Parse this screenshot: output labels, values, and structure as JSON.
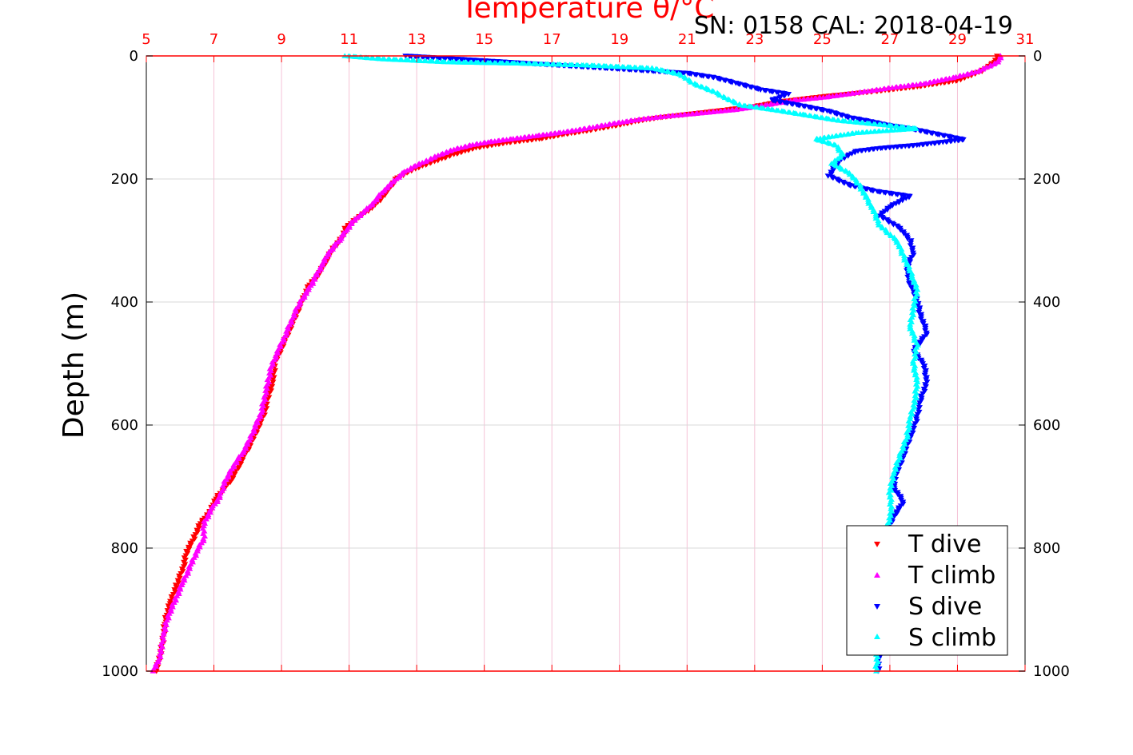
{
  "chart_data": {
    "type": "scatter",
    "title": "",
    "top_axis_label": "Temperature θ/°C",
    "annotation": "SN: 0158  CAL: 2018-04-19",
    "ylabel": "Depth (m)",
    "xlim": [
      5,
      31
    ],
    "ylim": [
      1000,
      0
    ],
    "y_reversed": true,
    "x_ticks": [
      "5",
      "7",
      "9",
      "11",
      "13",
      "15",
      "17",
      "19",
      "21",
      "23",
      "25",
      "27",
      "29",
      "31"
    ],
    "y_ticks": [
      "0",
      "200",
      "400",
      "600",
      "800",
      "1000"
    ],
    "grid": true,
    "legend_position": "bottom-right",
    "colors": {
      "axis_top": "#ff0000",
      "grid": "#d9d9d9",
      "vgrid": "#f5c2d6"
    },
    "series": [
      {
        "name": "T dive",
        "marker": "triangle-down",
        "color": "#ff0000",
        "points": [
          [
            30.2,
            0
          ],
          [
            30.1,
            10
          ],
          [
            29.7,
            25
          ],
          [
            29,
            40
          ],
          [
            27.8,
            50
          ],
          [
            26.5,
            58
          ],
          [
            25.2,
            65
          ],
          [
            24.4,
            70
          ],
          [
            23.7,
            75
          ],
          [
            23,
            82
          ],
          [
            22.1,
            88
          ],
          [
            21,
            95
          ],
          [
            20.2,
            100
          ],
          [
            19.6,
            105
          ],
          [
            19,
            112
          ],
          [
            18.2,
            120
          ],
          [
            17.3,
            128
          ],
          [
            16.6,
            135
          ],
          [
            15.8,
            140
          ],
          [
            15.2,
            145
          ],
          [
            14.7,
            150
          ],
          [
            14.1,
            160
          ],
          [
            13.6,
            170
          ],
          [
            13.1,
            180
          ],
          [
            12.7,
            190
          ],
          [
            12.4,
            200
          ],
          [
            12.2,
            215
          ],
          [
            11.9,
            235
          ],
          [
            11.6,
            250
          ],
          [
            11.2,
            265
          ],
          [
            10.9,
            280
          ],
          [
            10.8,
            295
          ],
          [
            10.5,
            315
          ],
          [
            10.3,
            335
          ],
          [
            10.1,
            355
          ],
          [
            9.8,
            375
          ],
          [
            9.6,
            400
          ],
          [
            9.4,
            425
          ],
          [
            9.2,
            450
          ],
          [
            9,
            475
          ],
          [
            8.8,
            500
          ],
          [
            8.75,
            530
          ],
          [
            8.6,
            555
          ],
          [
            8.5,
            580
          ],
          [
            8.3,
            605
          ],
          [
            8.1,
            630
          ],
          [
            7.9,
            650
          ],
          [
            7.7,
            670
          ],
          [
            7.5,
            690
          ],
          [
            7.05,
            720
          ],
          [
            6.9,
            740
          ],
          [
            6.6,
            760
          ],
          [
            6.4,
            785
          ],
          [
            6.2,
            805
          ],
          [
            6.1,
            830
          ],
          [
            5.9,
            860
          ],
          [
            5.7,
            890
          ],
          [
            5.55,
            920
          ],
          [
            5.5,
            950
          ],
          [
            5.4,
            975
          ],
          [
            5.3,
            1000
          ]
        ]
      },
      {
        "name": "T climb",
        "marker": "triangle-up",
        "color": "#ff00ff",
        "points": [
          [
            30.3,
            0
          ],
          [
            30.2,
            10
          ],
          [
            29.6,
            25
          ],
          [
            28.9,
            35
          ],
          [
            28,
            45
          ],
          [
            27,
            52
          ],
          [
            26,
            60
          ],
          [
            25.1,
            67
          ],
          [
            24.2,
            72
          ],
          [
            23.3,
            80
          ],
          [
            22.5,
            87
          ],
          [
            21.4,
            93
          ],
          [
            20.4,
            98
          ],
          [
            19.6,
            103
          ],
          [
            18.8,
            110
          ],
          [
            18,
            118
          ],
          [
            17.2,
            125
          ],
          [
            16.5,
            130
          ],
          [
            15.8,
            135
          ],
          [
            15.1,
            140
          ],
          [
            14.6,
            145
          ],
          [
            14.1,
            152
          ],
          [
            13.7,
            160
          ],
          [
            13.3,
            170
          ],
          [
            12.9,
            180
          ],
          [
            12.6,
            190
          ],
          [
            12.3,
            205
          ],
          [
            12,
            220
          ],
          [
            11.7,
            240
          ],
          [
            11.4,
            255
          ],
          [
            11.1,
            270
          ],
          [
            10.9,
            285
          ],
          [
            10.7,
            300
          ],
          [
            10.4,
            320
          ],
          [
            10.2,
            340
          ],
          [
            10,
            360
          ],
          [
            9.8,
            380
          ],
          [
            9.5,
            405
          ],
          [
            9.3,
            430
          ],
          [
            9.1,
            455
          ],
          [
            8.9,
            480
          ],
          [
            8.7,
            505
          ],
          [
            8.6,
            530
          ],
          [
            8.5,
            555
          ],
          [
            8.4,
            580
          ],
          [
            8.25,
            600
          ],
          [
            8.05,
            625
          ],
          [
            7.85,
            645
          ],
          [
            7.6,
            665
          ],
          [
            7.3,
            695
          ],
          [
            7.2,
            715
          ],
          [
            6.95,
            735
          ],
          [
            6.7,
            760
          ],
          [
            6.7,
            785
          ],
          [
            6.5,
            805
          ],
          [
            6.3,
            830
          ],
          [
            6.05,
            860
          ],
          [
            5.85,
            885
          ],
          [
            5.65,
            910
          ],
          [
            5.5,
            940
          ],
          [
            5.45,
            965
          ],
          [
            5.35,
            985
          ],
          [
            5.2,
            1000
          ]
        ]
      },
      {
        "name": "S dive",
        "marker": "triangle-down",
        "color": "#0000ff",
        "points": [
          [
            12.7,
            0
          ],
          [
            13.3,
            2
          ],
          [
            21,
            28
          ],
          [
            21.8,
            35
          ],
          [
            22.5,
            45
          ],
          [
            23.2,
            55
          ],
          [
            24,
            62
          ],
          [
            23.5,
            72
          ],
          [
            24.5,
            82
          ],
          [
            25.2,
            90
          ],
          [
            25.8,
            100
          ],
          [
            26.3,
            105
          ],
          [
            26.9,
            112
          ],
          [
            27.6,
            118
          ],
          [
            28.2,
            125
          ],
          [
            29.2,
            136
          ],
          [
            27.8,
            145
          ],
          [
            26.7,
            150
          ],
          [
            26,
            155
          ],
          [
            25.5,
            170
          ],
          [
            25.2,
            195
          ],
          [
            25.8,
            210
          ],
          [
            26.6,
            220
          ],
          [
            27.6,
            228
          ],
          [
            27,
            245
          ],
          [
            26.7,
            260
          ],
          [
            27.3,
            280
          ],
          [
            27.6,
            300
          ],
          [
            27.7,
            320
          ],
          [
            27.5,
            345
          ],
          [
            27.6,
            370
          ],
          [
            27.8,
            395
          ],
          [
            27.9,
            420
          ],
          [
            28.1,
            450
          ],
          [
            27.7,
            480
          ],
          [
            28,
            500
          ],
          [
            28.1,
            530
          ],
          [
            27.9,
            560
          ],
          [
            27.8,
            590
          ],
          [
            27.6,
            620
          ],
          [
            27.4,
            650
          ],
          [
            27.2,
            680
          ],
          [
            27.1,
            700
          ],
          [
            27.4,
            725
          ],
          [
            27.1,
            750
          ],
          [
            26.9,
            775
          ],
          [
            26.8,
            800
          ],
          [
            26.8,
            850
          ],
          [
            26.75,
            900
          ],
          [
            26.7,
            950
          ],
          [
            26.65,
            1000
          ]
        ]
      },
      {
        "name": "S climb",
        "marker": "triangle-up",
        "color": "#00ffff",
        "points": [
          [
            10.9,
            0
          ],
          [
            12,
            5
          ],
          [
            14,
            10
          ],
          [
            16,
            12
          ],
          [
            18,
            15
          ],
          [
            20,
            20
          ],
          [
            20.8,
            30
          ],
          [
            21.2,
            45
          ],
          [
            21.8,
            58
          ],
          [
            22.2,
            70
          ],
          [
            22.6,
            80
          ],
          [
            23.5,
            87
          ],
          [
            24.4,
            95
          ],
          [
            25.5,
            105
          ],
          [
            26.8,
            112
          ],
          [
            27.8,
            118
          ],
          [
            26,
            125
          ],
          [
            24.8,
            135
          ],
          [
            25.4,
            145
          ],
          [
            25.6,
            160
          ],
          [
            25.3,
            175
          ],
          [
            25.8,
            190
          ],
          [
            26.1,
            210
          ],
          [
            26.3,
            230
          ],
          [
            26.5,
            250
          ],
          [
            26.7,
            275
          ],
          [
            27.2,
            300
          ],
          [
            27.4,
            325
          ],
          [
            27.6,
            350
          ],
          [
            27.8,
            380
          ],
          [
            27.7,
            410
          ],
          [
            27.6,
            440
          ],
          [
            27.8,
            470
          ],
          [
            27.7,
            500
          ],
          [
            27.8,
            530
          ],
          [
            27.75,
            560
          ],
          [
            27.6,
            590
          ],
          [
            27.5,
            620
          ],
          [
            27.3,
            650
          ],
          [
            27.1,
            680
          ],
          [
            27,
            710
          ],
          [
            27.05,
            740
          ],
          [
            26.9,
            770
          ],
          [
            26.8,
            800
          ],
          [
            26.75,
            850
          ],
          [
            26.7,
            900
          ],
          [
            26.65,
            950
          ],
          [
            26.6,
            1000
          ]
        ]
      }
    ]
  }
}
